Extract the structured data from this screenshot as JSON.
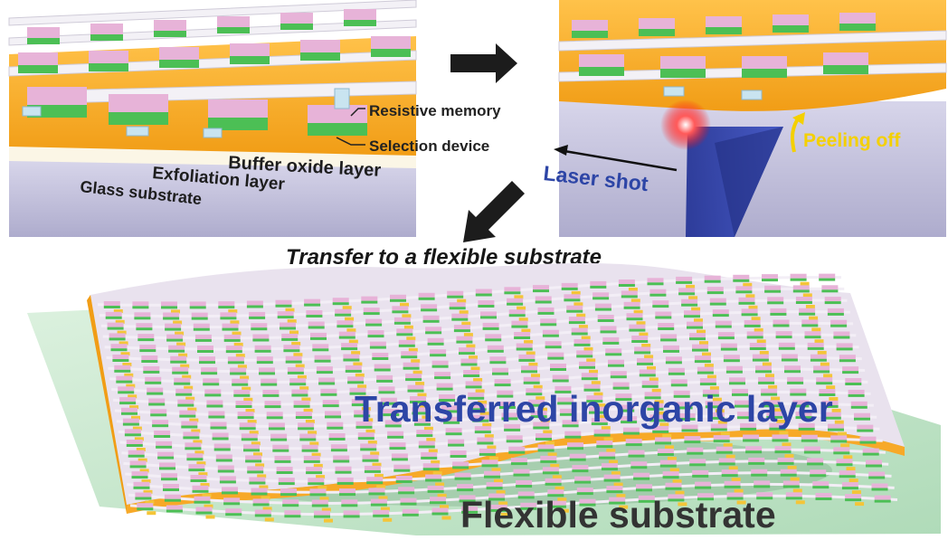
{
  "panel_top_left": {
    "labels": {
      "resistive_memory": "Resistive memory",
      "selection_device": "Selection device",
      "buffer_oxide_layer": "Buffer oxide layer",
      "exfoliation_layer": "Exfoliation layer",
      "glass_substrate": "Glass substrate"
    }
  },
  "panel_top_right": {
    "labels": {
      "peeling_off": "Peeling off",
      "laser_shot": "Laser shot"
    }
  },
  "transfer_caption": "Transfer to a flexible substrate",
  "panel_bottom": {
    "labels": {
      "transferred_layer": "Transferred inorganic layer",
      "flexible_substrate": "Flexible substrate"
    }
  },
  "colors": {
    "memory_pink": "#e7b3d8",
    "selector_green": "#4cbf55",
    "buffer_orange": "#f7a928",
    "glass_lavender": "#c4c2de",
    "laser_blue": "#2f3fa8",
    "flex_green": "#bfe3c6",
    "label_blue": "#2d45a6",
    "peel_yellow": "#f4d000"
  }
}
